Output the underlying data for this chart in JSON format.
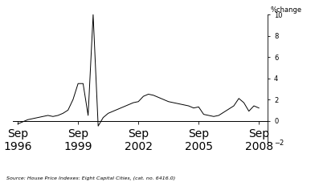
{
  "ylabel": "%change",
  "source_text": "Source: House Price Indexes: Eight Capital Cities, (cat. no. 6416.0)",
  "xlim_start": 1996.5,
  "xlim_end": 2009.2,
  "ylim": [
    -2,
    10
  ],
  "yticks": [
    -2,
    0,
    2,
    4,
    6,
    8,
    10
  ],
  "xtick_positions": [
    1996.75,
    1999.75,
    2002.75,
    2005.75,
    2008.75
  ],
  "xtick_labels": [
    "Sep\n1996",
    "Sep\n1999",
    "Sep\n2002",
    "Sep\n2005",
    "Sep\n2008"
  ],
  "line_color": "#000000",
  "line_width": 0.7,
  "background_color": "#ffffff",
  "data": {
    "dates": [
      1996.75,
      1997.0,
      1997.25,
      1997.5,
      1997.75,
      1998.0,
      1998.25,
      1998.5,
      1998.75,
      1999.0,
      1999.25,
      1999.5,
      1999.75,
      2000.0,
      2000.25,
      2000.5,
      2000.75,
      2001.0,
      2001.25,
      2001.5,
      2001.75,
      2002.0,
      2002.25,
      2002.5,
      2002.75,
      2003.0,
      2003.25,
      2003.5,
      2003.75,
      2004.0,
      2004.25,
      2004.5,
      2004.75,
      2005.0,
      2005.25,
      2005.5,
      2005.75,
      2006.0,
      2006.25,
      2006.5,
      2006.75,
      2007.0,
      2007.25,
      2007.5,
      2007.75,
      2008.0,
      2008.25,
      2008.5,
      2008.75
    ],
    "values": [
      -0.3,
      -0.1,
      0.1,
      0.2,
      0.3,
      0.4,
      0.5,
      0.4,
      0.5,
      0.7,
      1.0,
      2.0,
      3.5,
      3.5,
      0.5,
      10.0,
      -0.5,
      0.3,
      0.7,
      0.9,
      1.1,
      1.3,
      1.5,
      1.7,
      1.8,
      2.3,
      2.5,
      2.4,
      2.2,
      2.0,
      1.8,
      1.7,
      1.6,
      1.5,
      1.4,
      1.2,
      1.3,
      0.6,
      0.5,
      0.4,
      0.5,
      0.8,
      1.1,
      1.4,
      2.1,
      1.7,
      0.9,
      1.4,
      1.2
    ]
  }
}
